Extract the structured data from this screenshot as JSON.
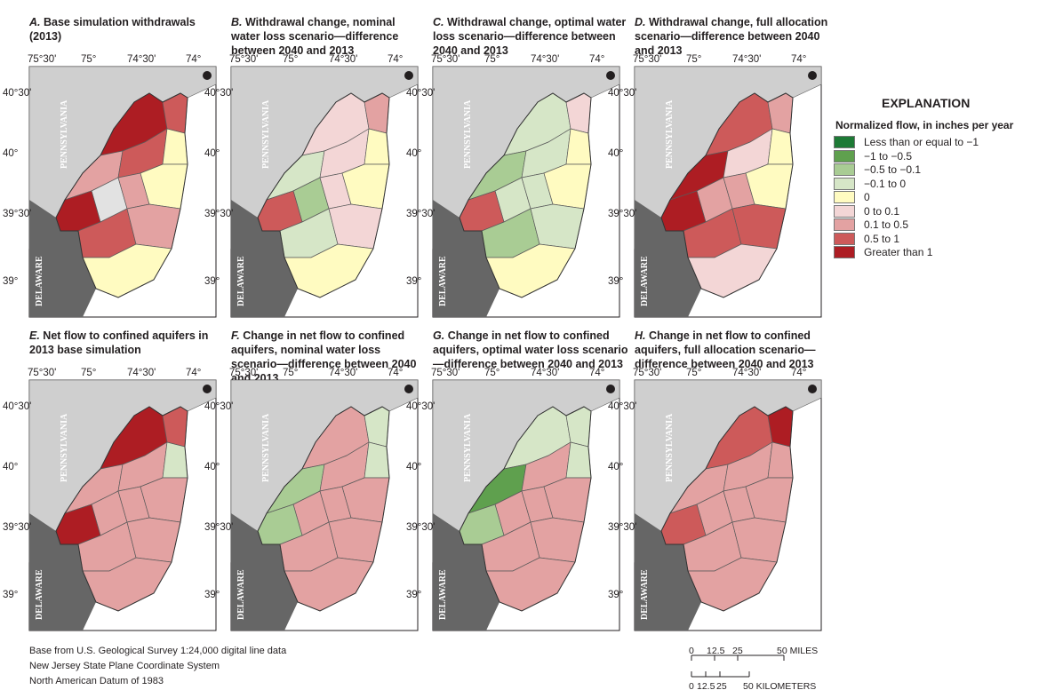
{
  "panels": [
    {
      "letter": "A.",
      "title": "Base simulation withdrawals (2013)"
    },
    {
      "letter": "B.",
      "title": "Withdrawal change, nominal water loss scenario—difference between 2040 and 2013"
    },
    {
      "letter": "C.",
      "title": "Withdrawal change, optimal water loss scenario—difference between 2040 and 2013"
    },
    {
      "letter": "D.",
      "title": "Withdrawal change, full allocation scenario—difference between 2040 and 2013"
    },
    {
      "letter": "E.",
      "title": "Net flow to confined aquifers in 2013 base simulation"
    },
    {
      "letter": "F.",
      "title": "Change in net flow to confined aquifers, nominal water loss scenario—difference between 2040 and 2013"
    },
    {
      "letter": "G.",
      "title": "Change in net flow to confined aquifers, optimal water loss scenario—difference between 2040 and 2013"
    },
    {
      "letter": "H.",
      "title": "Change in net flow to confined aquifers, full allocation scenario—difference between 2040 and 2013"
    }
  ],
  "longitude_ticks": [
    "75°30'",
    "75°",
    "74°30'",
    "74°"
  ],
  "latitude_ticks": [
    "40°30'",
    "40°",
    "39°30'",
    "39°"
  ],
  "state_labels": {
    "pennsylvania": "PENNSYLVANIA",
    "delaware": "DELAWARE"
  },
  "legend": {
    "title": "EXPLANATION",
    "subtitle": "Normalized flow, in inches per year",
    "classes": [
      {
        "label": "Less than or equal to −1",
        "color": "#1d7a35"
      },
      {
        "label": "−1 to −0.5",
        "color": "#5fa04e"
      },
      {
        "label": "−0.5 to −0.1",
        "color": "#a9cc94"
      },
      {
        "label": "−0.1 to 0",
        "color": "#d6e6c7"
      },
      {
        "label": "0",
        "color": "#fffbc1"
      },
      {
        "label": "0 to 0.1",
        "color": "#f3d6d6"
      },
      {
        "label": "0.1 to 0.5",
        "color": "#e3a2a2"
      },
      {
        "label": "0.5 to 1",
        "color": "#cd5a5a"
      },
      {
        "label": "Greater than 1",
        "color": "#ad1d23"
      }
    ]
  },
  "neutral_colors": {
    "land": "#cfcfcf",
    "water": "#666666",
    "nodata": "#e2e2e2"
  },
  "credits": [
    "Base from U.S. Geological Survey 1:24,000 digital line data",
    "New Jersey State Plane Coordinate System",
    "North American Datum of 1983"
  ],
  "scale_bar": {
    "miles_ticks": [
      "0",
      "12.5",
      "25",
      "50 MILES"
    ],
    "km_ticks": [
      "0",
      "12.5",
      "25",
      "50 KILOMETERS"
    ]
  },
  "panel_colors": {
    "A": [
      "#ad1d23",
      "#cd5a5a",
      "#e3a2a2",
      "#cd5a5a",
      "#fffbc1",
      "#e2e2e2",
      "#ad1d23",
      "#e3a2a2",
      "#fffbc1",
      "#cd5a5a",
      "#e3a2a2",
      "#fffbc1"
    ],
    "B": [
      "#f3d6d6",
      "#e3a2a2",
      "#d6e6c7",
      "#f3d6d6",
      "#fffbc1",
      "#a9cc94",
      "#cd5a5a",
      "#f3d6d6",
      "#fffbc1",
      "#d6e6c7",
      "#f3d6d6",
      "#fffbc1"
    ],
    "C": [
      "#d6e6c7",
      "#f3d6d6",
      "#a9cc94",
      "#d6e6c7",
      "#fffbc1",
      "#d6e6c7",
      "#cd5a5a",
      "#d6e6c7",
      "#fffbc1",
      "#a9cc94",
      "#d6e6c7",
      "#fffbc1"
    ],
    "D": [
      "#cd5a5a",
      "#e3a2a2",
      "#ad1d23",
      "#f3d6d6",
      "#fffbc1",
      "#e3a2a2",
      "#ad1d23",
      "#e3a2a2",
      "#fffbc1",
      "#cd5a5a",
      "#cd5a5a",
      "#f3d6d6"
    ],
    "E": [
      "#ad1d23",
      "#cd5a5a",
      "#e3a2a2",
      "#e3a2a2",
      "#d6e6c7",
      "#e3a2a2",
      "#ad1d23",
      "#e3a2a2",
      "#e3a2a2",
      "#e3a2a2",
      "#e3a2a2",
      "#e3a2a2"
    ],
    "F": [
      "#e3a2a2",
      "#d6e6c7",
      "#a9cc94",
      "#e3a2a2",
      "#d6e6c7",
      "#e3a2a2",
      "#a9cc94",
      "#e3a2a2",
      "#e3a2a2",
      "#e3a2a2",
      "#e3a2a2",
      "#e3a2a2"
    ],
    "G": [
      "#d6e6c7",
      "#d6e6c7",
      "#5fa04e",
      "#e3a2a2",
      "#d6e6c7",
      "#e3a2a2",
      "#a9cc94",
      "#e3a2a2",
      "#e3a2a2",
      "#e3a2a2",
      "#e3a2a2",
      "#e3a2a2"
    ],
    "H": [
      "#cd5a5a",
      "#ad1d23",
      "#e3a2a2",
      "#e3a2a2",
      "#e3a2a2",
      "#e3a2a2",
      "#cd5a5a",
      "#e3a2a2",
      "#e3a2a2",
      "#e3a2a2",
      "#e3a2a2",
      "#e3a2a2"
    ]
  }
}
